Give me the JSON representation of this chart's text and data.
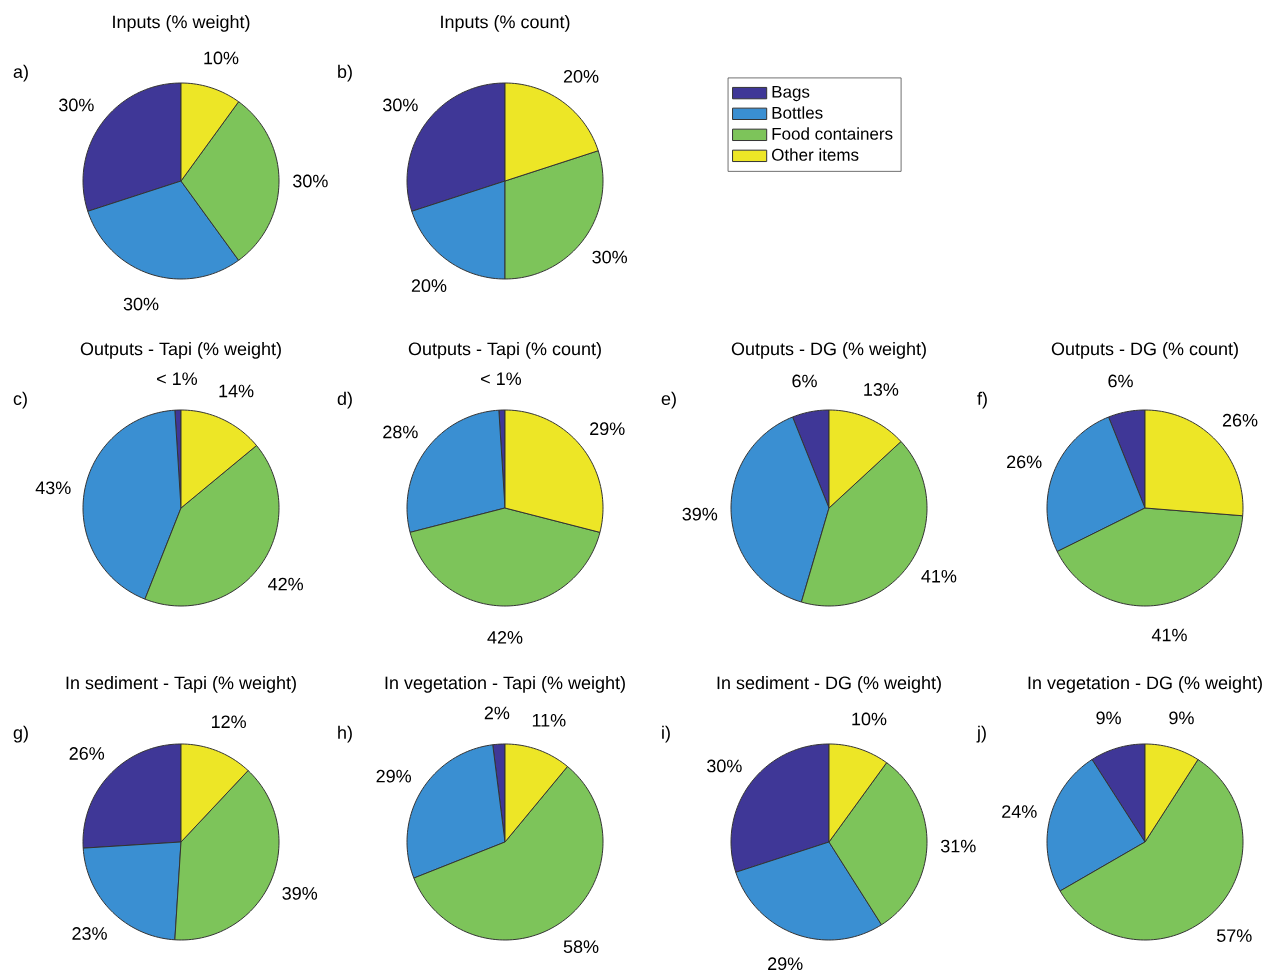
{
  "chart_data": [
    {
      "type": "pie",
      "title": "Inputs (% weight)",
      "annotations": [
        "a)"
      ],
      "categories": [
        null,
        null,
        null,
        null
      ],
      "values": [
        30,
        30,
        30,
        10
      ],
      "value_labels": [
        "30%",
        "30%",
        "30%",
        "10%"
      ],
      "colors": [
        "#3f3797",
        "#3a8fd2",
        "#7dc45a",
        "#ede626"
      ],
      "legend": false
    },
    {
      "type": "pie",
      "title": "Inputs (% count)",
      "annotations": [
        "b)"
      ],
      "categories": [
        "Bags",
        "Bottles",
        "Food containers",
        "Other items"
      ],
      "values": [
        30,
        20,
        30,
        20
      ],
      "value_labels": [
        "30%",
        "20%",
        "30%",
        "20%"
      ],
      "colors": [
        "#3f3797",
        "#3a8fd2",
        "#7dc45a",
        "#ede626"
      ],
      "legend": "right"
    },
    {
      "type": "pie",
      "title": "Outputs - Tapi (% weight)",
      "annotations": [
        "c)"
      ],
      "categories": [
        null,
        null,
        null,
        null
      ],
      "values": [
        1,
        43,
        42,
        14
      ],
      "value_labels": [
        "< 1%",
        "43%",
        "42%",
        "14%"
      ],
      "colors": [
        "#3f3797",
        "#3a8fd2",
        "#7dc45a",
        "#ede626"
      ],
      "legend": false
    },
    {
      "type": "pie",
      "title": "Outputs - Tapi (% count)",
      "annotations": [
        "d)"
      ],
      "categories": [
        null,
        null,
        null,
        null
      ],
      "values": [
        1,
        28,
        42,
        29
      ],
      "value_labels": [
        "< 1%",
        "28%",
        "42%",
        "29%"
      ],
      "colors": [
        "#3f3797",
        "#3a8fd2",
        "#7dc45a",
        "#ede626"
      ],
      "legend": false
    },
    {
      "type": "pie",
      "title": "Outputs - DG (% weight)",
      "annotations": [
        "e)"
      ],
      "categories": [
        null,
        null,
        null,
        null
      ],
      "values": [
        6,
        39,
        41,
        13
      ],
      "value_labels": [
        "6%",
        "39%",
        "41%",
        "13%"
      ],
      "colors": [
        "#3f3797",
        "#3a8fd2",
        "#7dc45a",
        "#ede626"
      ],
      "legend": false
    },
    {
      "type": "pie",
      "title": "Outputs - DG (% count)",
      "annotations": [
        "f)"
      ],
      "categories": [
        null,
        null,
        null,
        null
      ],
      "values": [
        6,
        26,
        41,
        26
      ],
      "value_labels": [
        "6%",
        "26%",
        "41%",
        "26%"
      ],
      "colors": [
        "#3f3797",
        "#3a8fd2",
        "#7dc45a",
        "#ede626"
      ],
      "legend": false
    },
    {
      "type": "pie",
      "title": "In sediment - Tapi (% weight)",
      "annotations": [
        "g)"
      ],
      "categories": [
        null,
        null,
        null,
        null
      ],
      "values": [
        26,
        23,
        39,
        12
      ],
      "value_labels": [
        "26%",
        "23%",
        "39%",
        "12%"
      ],
      "colors": [
        "#3f3797",
        "#3a8fd2",
        "#7dc45a",
        "#ede626"
      ],
      "legend": false
    },
    {
      "type": "pie",
      "title": "In vegetation - Tapi (% weight)",
      "annotations": [
        "h)"
      ],
      "categories": [
        null,
        null,
        null,
        null
      ],
      "values": [
        2,
        29,
        58,
        11
      ],
      "value_labels": [
        "2%",
        "29%",
        "58%",
        "11%"
      ],
      "colors": [
        "#3f3797",
        "#3a8fd2",
        "#7dc45a",
        "#ede626"
      ],
      "legend": false
    },
    {
      "type": "pie",
      "title": "In sediment - DG (% weight)",
      "annotations": [
        "i)"
      ],
      "categories": [
        null,
        null,
        null,
        null
      ],
      "values": [
        30,
        29,
        31,
        10
      ],
      "value_labels": [
        "30%",
        "29%",
        "31%",
        "10%"
      ],
      "colors": [
        "#3f3797",
        "#3a8fd2",
        "#7dc45a",
        "#ede626"
      ],
      "legend": false
    },
    {
      "type": "pie",
      "title": "In vegetation - DG (% weight)",
      "annotations": [
        "j)"
      ],
      "categories": [
        null,
        null,
        null,
        null
      ],
      "values": [
        9,
        24,
        57,
        9
      ],
      "value_labels": [
        "9%",
        "24%",
        "57%",
        "9%"
      ],
      "colors": [
        "#3f3797",
        "#3a8fd2",
        "#7dc45a",
        "#ede626"
      ],
      "legend": false
    }
  ]
}
